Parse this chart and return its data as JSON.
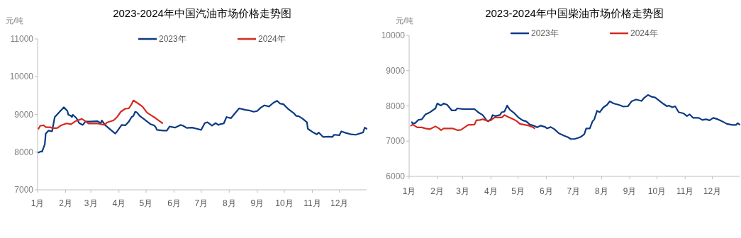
{
  "chart_data": [
    {
      "type": "line",
      "title": "2023-2024年中国汽油市场价格走势图",
      "ylabel": "元/吨",
      "legend": "top",
      "grid": false,
      "marker": "none",
      "line_style": "solid",
      "xlim": [
        "--01-01",
        "--12-31"
      ],
      "xticks": [
        {
          "value": "--01-01",
          "label": "1月"
        },
        {
          "value": "--02-01",
          "label": "2月"
        },
        {
          "value": "--03-01",
          "label": "3月"
        },
        {
          "value": "--04-01",
          "label": "4月"
        },
        {
          "value": "--05-01",
          "label": "5月"
        },
        {
          "value": "--06-01",
          "label": "6月"
        },
        {
          "value": "--07-01",
          "label": "7月"
        },
        {
          "value": "--08-01",
          "label": "8月"
        },
        {
          "value": "--09-01",
          "label": "9月"
        },
        {
          "value": "--10-01",
          "label": "10月"
        },
        {
          "value": "--11-01",
          "label": "11月"
        },
        {
          "value": "--12-01",
          "label": "12月"
        }
      ],
      "ylim": [
        7000,
        11000
      ],
      "yticks": [
        7000,
        8000,
        9000,
        10000,
        11000
      ],
      "series": [
        {
          "name": "2023年",
          "color": "#0b3a84",
          "x": [
            "--01-02",
            "--01-05",
            "--01-06",
            "--01-09",
            "--01-10",
            "--01-13",
            "--01-17",
            "--01-20",
            "--01-30",
            "--02-03",
            "--02-04",
            "--02-07",
            "--02-08",
            "--02-09",
            "--02-13",
            "--02-16",
            "--02-20",
            "--02-23",
            "--02-28",
            "--03-08",
            "--03-12",
            "--03-13",
            "--03-17",
            "--03-23",
            "--03-28",
            "--03-30",
            "--04-04",
            "--04-08",
            "--04-12",
            "--04-15",
            "--04-17",
            "--04-19",
            "--04-21",
            "--04-24",
            "--04-29",
            "--05-06",
            "--05-10",
            "--05-12",
            "--05-13",
            "--05-20",
            "--05-24",
            "--05-27",
            "--05-31",
            "--06-02",
            "--06-08",
            "--06-11",
            "--06-15",
            "--06-21",
            "--06-26",
            "--07-01",
            "--07-05",
            "--07-08",
            "--07-13",
            "--07-17",
            "--07-20",
            "--07-22",
            "--07-26",
            "--07-29",
            "--08-03",
            "--08-07",
            "--08-12",
            "--08-19",
            "--08-24",
            "--08-28",
            "--09-01",
            "--09-05",
            "--09-09",
            "--09-14",
            "--09-19",
            "--09-23",
            "--09-26",
            "--09-30",
            "--10-05",
            "--10-12",
            "--10-14",
            "--10-17",
            "--10-21",
            "--10-26",
            "--10-27",
            "--11-02",
            "--11-06",
            "--11-08",
            "--11-13",
            "--11-19",
            "--11-23",
            "--11-25",
            "--12-01",
            "--12-03",
            "--12-08",
            "--12-14",
            "--12-19",
            "--12-27",
            "--12-29",
            "--12-31"
          ],
          "values": [
            7990,
            8020,
            8010,
            8210,
            8490,
            8570,
            8550,
            8930,
            9190,
            9090,
            8990,
            8960,
            8930,
            8990,
            8900,
            8770,
            8720,
            8810,
            8810,
            8820,
            8770,
            8840,
            8710,
            8590,
            8490,
            8550,
            8720,
            8710,
            8810,
            8930,
            8960,
            9070,
            9050,
            8960,
            8870,
            8740,
            8710,
            8650,
            8590,
            8570,
            8570,
            8680,
            8660,
            8650,
            8720,
            8700,
            8640,
            8650,
            8620,
            8590,
            8770,
            8790,
            8700,
            8770,
            8720,
            8740,
            8760,
            8930,
            8900,
            9020,
            9160,
            9120,
            9100,
            9070,
            9090,
            9180,
            9240,
            9210,
            9310,
            9360,
            9290,
            9270,
            9150,
            9020,
            8960,
            8950,
            8890,
            8790,
            8620,
            8520,
            8470,
            8520,
            8400,
            8410,
            8400,
            8460,
            8450,
            8550,
            8510,
            8470,
            8460,
            8520,
            8650,
            8620
          ]
        },
        {
          "name": "2024年",
          "color": "#d42a1f",
          "x": [
            "--01-02",
            "--01-04",
            "--01-08",
            "--01-10",
            "--01-15",
            "--01-18",
            "--01-23",
            "--01-27",
            "--02-02",
            "--02-07",
            "--02-12",
            "--02-19",
            "--02-23",
            "--02-26",
            "--03-08",
            "--03-16",
            "--03-19",
            "--03-26",
            "--03-30",
            "--04-03",
            "--04-08",
            "--04-12",
            "--04-15",
            "--04-17",
            "--04-21",
            "--04-27",
            "--05-02",
            "--05-07",
            "--05-11",
            "--05-15",
            "--05-19"
          ],
          "values": [
            8620,
            8700,
            8710,
            8660,
            8660,
            8630,
            8640,
            8710,
            8760,
            8740,
            8820,
            8880,
            8820,
            8760,
            8760,
            8720,
            8790,
            8840,
            8930,
            9070,
            9150,
            9160,
            9270,
            9370,
            9310,
            9210,
            9050,
            8970,
            8910,
            8840,
            8770
          ]
        }
      ]
    },
    {
      "type": "line",
      "title": "2023-2024年中国柴油市场价格走势图",
      "ylabel": "元/吨",
      "legend": "top",
      "grid": false,
      "marker": "none",
      "line_style": "solid",
      "xlim": [
        "--01-01",
        "--12-31"
      ],
      "xticks": [
        {
          "value": "--01-01",
          "label": "1月"
        },
        {
          "value": "--02-01",
          "label": "2月"
        },
        {
          "value": "--03-01",
          "label": "3月"
        },
        {
          "value": "--04-01",
          "label": "4月"
        },
        {
          "value": "--05-01",
          "label": "5月"
        },
        {
          "value": "--06-01",
          "label": "6月"
        },
        {
          "value": "--07-01",
          "label": "7月"
        },
        {
          "value": "--08-01",
          "label": "8月"
        },
        {
          "value": "--09-01",
          "label": "9月"
        },
        {
          "value": "--10-01",
          "label": "10月"
        },
        {
          "value": "--11-01",
          "label": "11月"
        },
        {
          "value": "--12-01",
          "label": "12月"
        }
      ],
      "ylim": [
        6000,
        10000
      ],
      "yticks": [
        6000,
        7000,
        8000,
        9000,
        10000
      ],
      "series": [
        {
          "name": "2023年",
          "color": "#0b3a84",
          "x": [
            "--01-04",
            "--01-05",
            "--01-08",
            "--01-11",
            "--01-15",
            "--01-19",
            "--01-24",
            "--01-30",
            "--02-01",
            "--02-05",
            "--02-08",
            "--02-12",
            "--02-17",
            "--02-21",
            "--02-23",
            "--03-01",
            "--03-06",
            "--03-14",
            "--03-18",
            "--03-23",
            "--03-27",
            "--03-29",
            "--04-01",
            "--04-03",
            "--04-06",
            "--04-11",
            "--04-13",
            "--04-16",
            "--04-19",
            "--04-22",
            "--04-27",
            "--05-02",
            "--05-06",
            "--05-10",
            "--05-14",
            "--05-18",
            "--05-22",
            "--05-26",
            "--05-31",
            "--06-02",
            "--06-06",
            "--06-10",
            "--06-15",
            "--06-21",
            "--06-25",
            "--06-28",
            "--07-02",
            "--07-06",
            "--07-09",
            "--07-13",
            "--07-15",
            "--07-19",
            "--07-22",
            "--07-24",
            "--07-27",
            "--07-30",
            "--08-03",
            "--08-07",
            "--08-10",
            "--08-14",
            "--08-20",
            "--08-25",
            "--08-30",
            "--09-03",
            "--09-08",
            "--09-14",
            "--09-17",
            "--09-21",
            "--09-25",
            "--09-29",
            "--10-03",
            "--10-08",
            "--10-12",
            "--10-14",
            "--10-18",
            "--10-21",
            "--10-25",
            "--10-30",
            "--11-03",
            "--11-06",
            "--11-10",
            "--11-16",
            "--11-20",
            "--11-24",
            "--11-28",
            "--12-02",
            "--12-07",
            "--12-12",
            "--12-17",
            "--12-23",
            "--12-27",
            "--12-29",
            "--12-31"
          ],
          "values": [
            7540,
            7490,
            7520,
            7600,
            7620,
            7760,
            7820,
            7930,
            8070,
            8010,
            8070,
            8030,
            7870,
            7870,
            7930,
            7910,
            7910,
            7910,
            7820,
            7740,
            7600,
            7560,
            7620,
            7740,
            7710,
            7740,
            7820,
            7840,
            8010,
            7890,
            7790,
            7660,
            7590,
            7560,
            7470,
            7440,
            7390,
            7440,
            7400,
            7360,
            7400,
            7340,
            7220,
            7150,
            7110,
            7060,
            7060,
            7090,
            7120,
            7200,
            7360,
            7360,
            7560,
            7620,
            7860,
            7820,
            7960,
            8030,
            8130,
            8070,
            8030,
            7980,
            7990,
            8130,
            8180,
            8140,
            8230,
            8310,
            8260,
            8240,
            8160,
            8060,
            7990,
            8010,
            7960,
            7990,
            7820,
            7790,
            7710,
            7760,
            7660,
            7660,
            7600,
            7620,
            7590,
            7660,
            7620,
            7560,
            7490,
            7460,
            7460,
            7510,
            7470
          ]
        },
        {
          "name": "2024年",
          "color": "#d42a1f",
          "x": [
            "--01-03",
            "--01-05",
            "--01-10",
            "--01-15",
            "--01-19",
            "--01-24",
            "--01-30",
            "--02-03",
            "--02-05",
            "--02-08",
            "--02-13",
            "--02-18",
            "--02-23",
            "--02-27",
            "--03-03",
            "--03-07",
            "--03-14",
            "--03-16",
            "--03-20",
            "--03-23",
            "--03-28",
            "--04-01",
            "--04-05",
            "--04-09",
            "--04-13",
            "--04-16",
            "--04-20",
            "--04-26",
            "--04-30",
            "--05-03",
            "--05-09",
            "--05-13",
            "--05-18",
            "--05-19"
          ],
          "values": [
            7440,
            7470,
            7390,
            7390,
            7360,
            7340,
            7420,
            7360,
            7310,
            7360,
            7360,
            7360,
            7310,
            7320,
            7390,
            7460,
            7470,
            7590,
            7600,
            7620,
            7580,
            7590,
            7670,
            7670,
            7670,
            7740,
            7690,
            7620,
            7560,
            7490,
            7460,
            7440,
            7390,
            7360
          ]
        }
      ]
    }
  ]
}
